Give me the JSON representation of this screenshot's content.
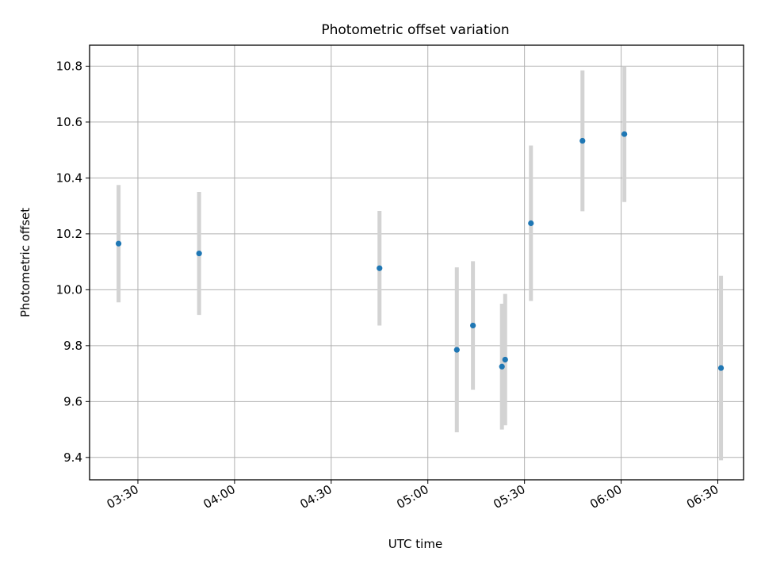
{
  "chart_data": {
    "type": "scatter",
    "title": "Photometric offset variation",
    "xlabel": "UTC time",
    "ylabel": "Photometric offset",
    "x_tick_labels": [
      "03:30",
      "04:00",
      "04:30",
      "05:00",
      "05:30",
      "06:00",
      "06:30"
    ],
    "y_tick_labels": [
      "9.4",
      "9.6",
      "9.8",
      "10.0",
      "10.2",
      "10.4",
      "10.6",
      "10.8"
    ],
    "xlim": [
      "03:15",
      "06:38"
    ],
    "ylim": [
      9.32,
      10.875
    ],
    "grid": true,
    "point_color": "#1f77b4",
    "errorbar_color": "#d3d3d3",
    "points": [
      {
        "x": "03:24",
        "y": 10.165,
        "err": 0.21
      },
      {
        "x": "03:49",
        "y": 10.13,
        "err": 0.22
      },
      {
        "x": "04:45",
        "y": 10.077,
        "err": 0.205
      },
      {
        "x": "05:09",
        "y": 9.785,
        "err": 0.295
      },
      {
        "x": "05:14",
        "y": 9.872,
        "err": 0.23
      },
      {
        "x": "05:23",
        "y": 9.725,
        "err": 0.225
      },
      {
        "x": "05:24",
        "y": 9.75,
        "err": 0.235
      },
      {
        "x": "05:32",
        "y": 10.238,
        "err": 0.278
      },
      {
        "x": "05:48",
        "y": 10.533,
        "err": 0.252
      },
      {
        "x": "06:01",
        "y": 10.557,
        "err": 0.243
      },
      {
        "x": "06:31",
        "y": 9.72,
        "err": 0.33
      }
    ]
  }
}
